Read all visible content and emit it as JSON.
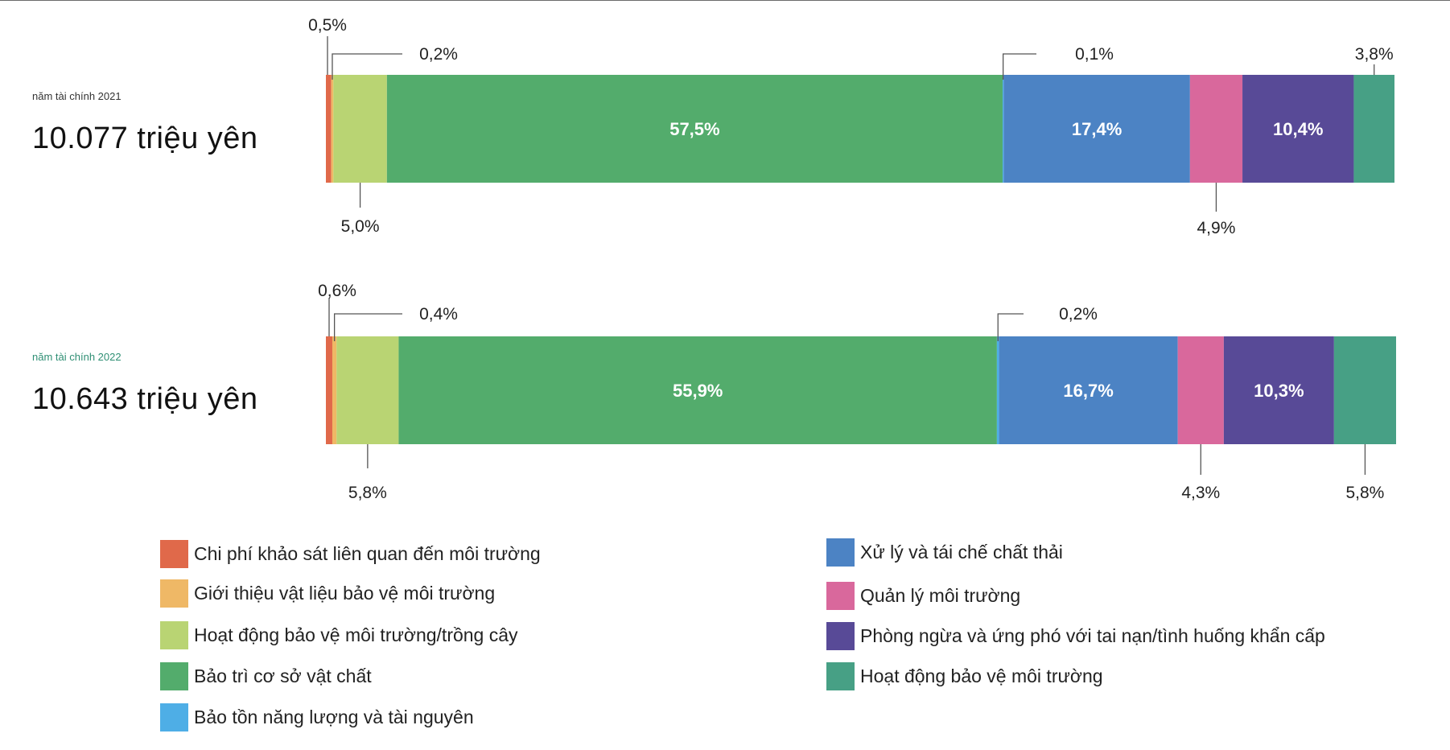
{
  "chart_data": {
    "type": "bar",
    "orientation": "horizontal-stacked-100",
    "xlim": [
      0,
      100
    ],
    "unit": "%",
    "bars": [
      {
        "year_label": "năm tài chính 2021",
        "total_label": "10.077 triệu yên",
        "segments": [
          {
            "category": "Chi phí khảo sát liên quan đến môi trường",
            "value": 0.5,
            "label": "0,5%"
          },
          {
            "category": "Giới thiệu vật liệu bảo vệ môi trường",
            "value": 0.2,
            "label": "0,2%"
          },
          {
            "category": "Hoạt động bảo vệ môi trường/trồng cây",
            "value": 5.0,
            "label": "5,0%"
          },
          {
            "category": "Bảo trì cơ sở vật chất",
            "value": 57.5,
            "label": "57,5%"
          },
          {
            "category": "Bảo tồn năng lượng và tài nguyên",
            "value": 0.1,
            "label": "0,1%"
          },
          {
            "category": "Xử lý và tái chế chất thải",
            "value": 17.4,
            "label": "17,4%"
          },
          {
            "category": "Quản lý môi trường",
            "value": 4.9,
            "label": "4,9%"
          },
          {
            "category": "Phòng ngừa và ứng phó với tai nạn/tình huống khẩn cấp",
            "value": 10.4,
            "label": "10,4%"
          },
          {
            "category": "Hoạt động bảo vệ môi trường",
            "value": 3.8,
            "label": "3,8%"
          }
        ]
      },
      {
        "year_label": "năm tài chính 2022",
        "total_label": "10.643 triệu yên",
        "segments": [
          {
            "category": "Chi phí khảo sát liên quan đến môi trường",
            "value": 0.6,
            "label": "0,6%"
          },
          {
            "category": "Giới thiệu vật liệu bảo vệ môi trường",
            "value": 0.4,
            "label": "0,4%"
          },
          {
            "category": "Hoạt động bảo vệ môi trường/trồng cây",
            "value": 5.8,
            "label": "5,8%"
          },
          {
            "category": "Bảo trì cơ sở vật chất",
            "value": 55.9,
            "label": "55,9%"
          },
          {
            "category": "Bảo tồn năng lượng và tài nguyên",
            "value": 0.2,
            "label": "0,2%"
          },
          {
            "category": "Xử lý và tái chế chất thải",
            "value": 16.7,
            "label": "16,7%"
          },
          {
            "category": "Quản lý môi trường",
            "value": 4.3,
            "label": "4,3%"
          },
          {
            "category": "Phòng ngừa và ứng phó với tai nạn/tình huống khẩn cấp",
            "value": 10.3,
            "label": "10,3%"
          },
          {
            "category": "Hoạt động bảo vệ môi trường",
            "value": 5.8,
            "label": "5,8%"
          }
        ]
      }
    ],
    "legend": [
      {
        "name": "Chi phí khảo sát liên quan đến môi trường",
        "color": "#e0694a"
      },
      {
        "name": "Giới thiệu vật liệu bảo vệ môi trường",
        "color": "#efb866"
      },
      {
        "name": "Hoạt động bảo vệ môi trường/trồng cây",
        "color": "#b9d473"
      },
      {
        "name": "Bảo trì cơ sở vật chất",
        "color": "#53ac6c"
      },
      {
        "name": "Bảo tồn năng lượng và tài nguyên",
        "color": "#4eaee6"
      },
      {
        "name": "Xử lý và tái chế chất thải",
        "color": "#4c83c4"
      },
      {
        "name": "Quản lý môi trường",
        "color": "#d9689c"
      },
      {
        "name": "Phòng ngừa và ứng phó với tai nạn/tình huống khẩn cấp",
        "color": "#584a97"
      },
      {
        "name": "Hoạt động bảo vệ môi trường",
        "color": "#47a085"
      }
    ],
    "legend_placement": "bottom",
    "grid": false
  }
}
